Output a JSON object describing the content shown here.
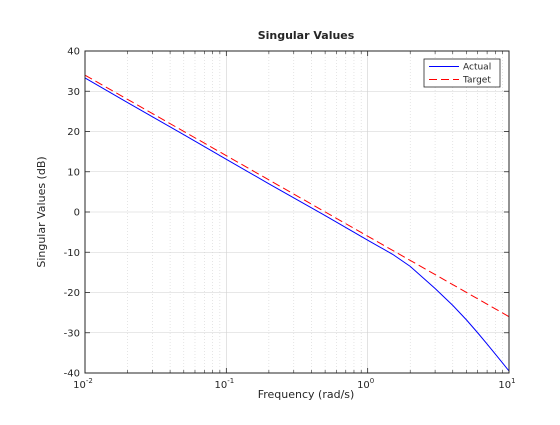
{
  "chart_data": {
    "type": "line",
    "title": "Singular Values",
    "xlabel": "Frequency (rad/s)",
    "ylabel": "Singular Values (dB)",
    "xscale": "log",
    "xlim": [
      0.01,
      10
    ],
    "ylim": [
      -40,
      40
    ],
    "grid": true,
    "legend_position": "top-right",
    "x_ticks": [
      {
        "value": 0.01,
        "base": "10",
        "exp": "-2"
      },
      {
        "value": 0.1,
        "base": "10",
        "exp": "-1"
      },
      {
        "value": 1,
        "base": "10",
        "exp": "0"
      },
      {
        "value": 10,
        "base": "10",
        "exp": "1"
      }
    ],
    "y_ticks": [
      {
        "value": 40,
        "label": "40"
      },
      {
        "value": 30,
        "label": "30"
      },
      {
        "value": 20,
        "label": "20"
      },
      {
        "value": 10,
        "label": "10"
      },
      {
        "value": 0,
        "label": "0"
      },
      {
        "value": -10,
        "label": "-10"
      },
      {
        "value": -20,
        "label": "-20"
      },
      {
        "value": -30,
        "label": "-30"
      },
      {
        "value": -40,
        "label": "-40"
      }
    ],
    "series": [
      {
        "name": "Actual",
        "color": "#0000ff",
        "style": "solid",
        "x": [
          0.01,
          0.02,
          0.05,
          0.1,
          0.2,
          0.5,
          1,
          1.5,
          2,
          3,
          4,
          5,
          6,
          7,
          8,
          9,
          10
        ],
        "y": [
          33.3,
          27.2,
          19.2,
          13.1,
          7.0,
          -0.9,
          -7.0,
          -10.5,
          -13.5,
          -19.0,
          -23.2,
          -26.8,
          -30.0,
          -32.8,
          -35.3,
          -37.5,
          -39.5
        ]
      },
      {
        "name": "Target",
        "color": "#ff0000",
        "style": "dashed",
        "x": [
          0.01,
          0.1,
          1,
          10
        ],
        "y": [
          34,
          14,
          -6,
          -26
        ]
      }
    ]
  }
}
